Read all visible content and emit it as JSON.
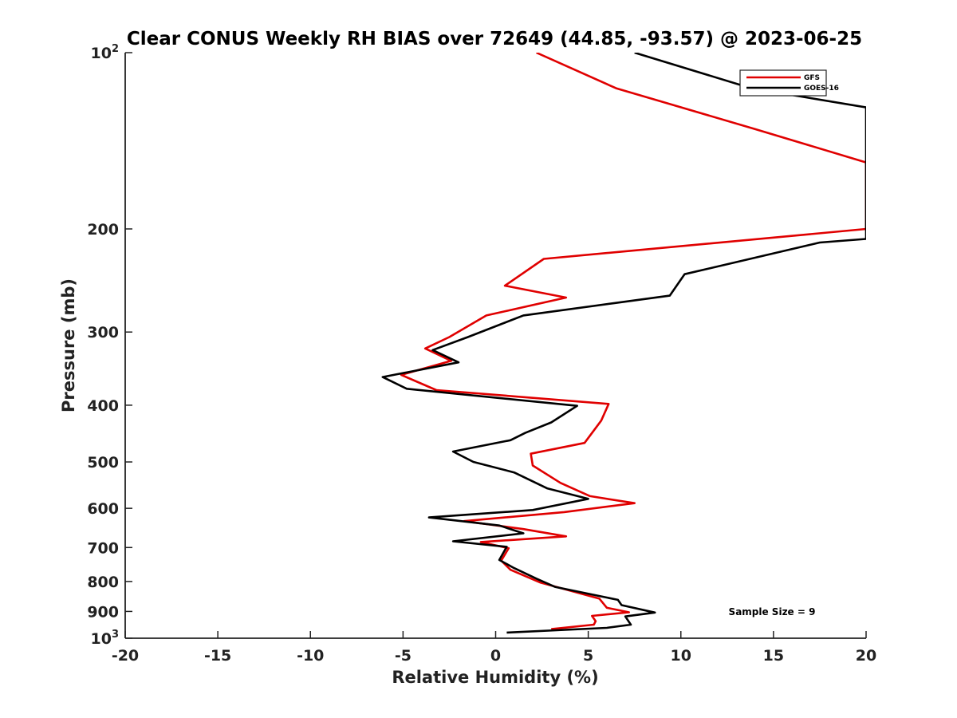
{
  "chart_data": {
    "type": "line",
    "title": "Clear CONUS Weekly RH BIAS over 72649 (44.85, -93.57) @ 2023-06-25",
    "xlabel": "Relative Humidity (%)",
    "ylabel": "Pressure (mb)",
    "xlim": [
      -20,
      20
    ],
    "ylim": [
      1000,
      100
    ],
    "y_scale": "log",
    "y_reversed": true,
    "grid": false,
    "legend_position": "top-right",
    "x_ticks": [
      "-20",
      "-15",
      "-10",
      "-5",
      "0",
      "5",
      "10",
      "15",
      "20"
    ],
    "y_ticks": [
      {
        "value": 100,
        "base": "10",
        "exp": "2"
      },
      {
        "value": 200,
        "label": "200"
      },
      {
        "value": 300,
        "label": "300"
      },
      {
        "value": 400,
        "label": "400"
      },
      {
        "value": 500,
        "label": "500"
      },
      {
        "value": 600,
        "label": "600"
      },
      {
        "value": 700,
        "label": "700"
      },
      {
        "value": 800,
        "label": "800"
      },
      {
        "value": 900,
        "label": "900"
      },
      {
        "value": 1000,
        "base": "10",
        "exp": "3"
      }
    ],
    "annotation": "Sample Size = 9",
    "series": [
      {
        "name": "GFS",
        "color": "#e00000",
        "points": [
          [
            2.2,
            100
          ],
          [
            6.5,
            115
          ],
          [
            14,
            135
          ],
          [
            20,
            154
          ],
          [
            20,
            200
          ],
          [
            2.6,
            225
          ],
          [
            0.5,
            250
          ],
          [
            3.8,
            262
          ],
          [
            -0.5,
            281
          ],
          [
            -2.5,
            306
          ],
          [
            -3.8,
            320
          ],
          [
            -2.4,
            336
          ],
          [
            -5.1,
            355
          ],
          [
            -3.2,
            377
          ],
          [
            6.1,
            398
          ],
          [
            5.7,
            425
          ],
          [
            4.8,
            464
          ],
          [
            1.9,
            484
          ],
          [
            2.0,
            507
          ],
          [
            3.5,
            543
          ],
          [
            5.1,
            572
          ],
          [
            7.5,
            588
          ],
          [
            3.7,
            609
          ],
          [
            -1.7,
            631
          ],
          [
            1.5,
            651
          ],
          [
            3.8,
            670
          ],
          [
            -0.8,
            685
          ],
          [
            0.7,
            702
          ],
          [
            0.3,
            737
          ],
          [
            0.8,
            764
          ],
          [
            2.4,
            803
          ],
          [
            5.6,
            856
          ],
          [
            6.0,
            887
          ],
          [
            7.2,
            903
          ],
          [
            5.2,
            916
          ],
          [
            5.4,
            935
          ],
          [
            5.3,
            948
          ],
          [
            3.0,
            965
          ]
        ]
      },
      {
        "name": "GOES-16",
        "color": "#000000",
        "points": [
          [
            7.5,
            100
          ],
          [
            13.8,
            115
          ],
          [
            20,
            124
          ],
          [
            20,
            208
          ],
          [
            17.5,
            211
          ],
          [
            10.2,
            239
          ],
          [
            9.4,
            260
          ],
          [
            1.5,
            281
          ],
          [
            -1.5,
            306
          ],
          [
            -3.4,
            322
          ],
          [
            -2.0,
            338
          ],
          [
            -6.1,
            358
          ],
          [
            -4.8,
            375
          ],
          [
            4.4,
            401
          ],
          [
            3.0,
            428
          ],
          [
            1.6,
            446
          ],
          [
            0.8,
            459
          ],
          [
            -2.3,
            480
          ],
          [
            -1.2,
            500
          ],
          [
            1.0,
            521
          ],
          [
            2.8,
            555
          ],
          [
            5.0,
            578
          ],
          [
            2.0,
            604
          ],
          [
            -3.6,
            622
          ],
          [
            0.2,
            642
          ],
          [
            1.5,
            662
          ],
          [
            -2.3,
            683
          ],
          [
            0.6,
            698
          ],
          [
            0.2,
            735
          ],
          [
            1.0,
            759
          ],
          [
            2.2,
            791
          ],
          [
            3.2,
            817
          ],
          [
            6.6,
            860
          ],
          [
            6.8,
            878
          ],
          [
            8.6,
            904
          ],
          [
            7.0,
            918
          ],
          [
            7.3,
            948
          ],
          [
            6.0,
            960
          ],
          [
            0.6,
            978
          ]
        ]
      }
    ]
  }
}
